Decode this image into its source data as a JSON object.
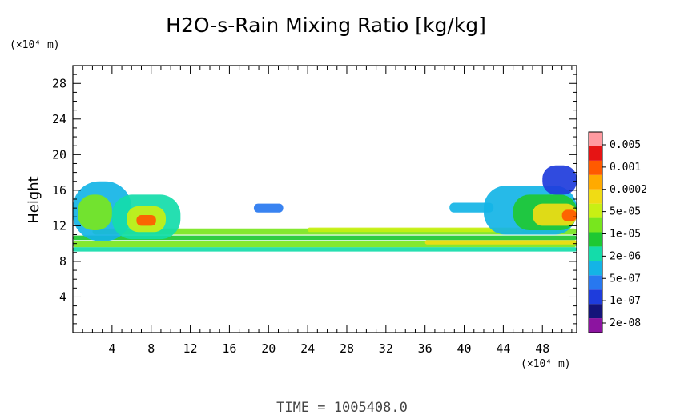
{
  "chart_data": {
    "type": "heatmap",
    "title": "H2O-s-Rain Mixing Ratio [kg/kg]",
    "ylabel": "Height",
    "y_unit": "(×10⁴ m)",
    "x_unit": "(×10⁴ m)",
    "xlim": [
      0,
      51.5
    ],
    "ylim": [
      0,
      30
    ],
    "x_ticks": [
      4,
      8,
      12,
      16,
      20,
      24,
      28,
      32,
      36,
      40,
      44,
      48
    ],
    "y_ticks": [
      4,
      8,
      12,
      16,
      20,
      24,
      28
    ],
    "grid": false,
    "legend_position": "right",
    "colorbar": {
      "labels": [
        "0.005",
        "0.001",
        "0.0002",
        "5e-05",
        "1e-05",
        "2e-06",
        "5e-07",
        "1e-07",
        "2e-08"
      ],
      "colors": [
        "#8c14a0",
        "#14147a",
        "#1e3cdc",
        "#2878f0",
        "#14b4e6",
        "#14dcaa",
        "#1ec832",
        "#78e61e",
        "#c8f014",
        "#f0dc14",
        "#ffaa00",
        "#ff5a00",
        "#e61414",
        "#ff9aa0"
      ]
    },
    "regions": [
      {
        "x": [
          0,
          51.5
        ],
        "y": [
          9.1,
          9.6
        ],
        "level": 5
      },
      {
        "x": [
          0,
          51.5
        ],
        "y": [
          9.6,
          10.3
        ],
        "level": 7
      },
      {
        "x": [
          36,
          51.5
        ],
        "y": [
          9.9,
          10.4
        ],
        "level": 9
      },
      {
        "x": [
          0,
          51.5
        ],
        "y": [
          10.4,
          10.9
        ],
        "level": 6
      },
      {
        "x": [
          2,
          51.5
        ],
        "y": [
          11.0,
          11.7
        ],
        "level": 7
      },
      {
        "x": [
          24,
          46
        ],
        "y": [
          11.3,
          11.8
        ],
        "level": 8
      },
      {
        "x": [
          0,
          6
        ],
        "y": [
          10.3,
          17.0
        ],
        "level": 4
      },
      {
        "x": [
          0.5,
          4
        ],
        "y": [
          11.5,
          15.5
        ],
        "level": 7
      },
      {
        "x": [
          4,
          11
        ],
        "y": [
          10.5,
          15.5
        ],
        "level": 5
      },
      {
        "x": [
          5.5,
          9.5
        ],
        "y": [
          11.3,
          14.2
        ],
        "level": 8
      },
      {
        "x": [
          6.5,
          8.5
        ],
        "y": [
          12.0,
          13.2
        ],
        "level": 11
      },
      {
        "x": [
          18.5,
          21.5
        ],
        "y": [
          13.5,
          14.5
        ],
        "level": 3
      },
      {
        "x": [
          38.5,
          43
        ],
        "y": [
          13.5,
          14.6
        ],
        "level": 4
      },
      {
        "x": [
          42,
          51.5
        ],
        "y": [
          11.0,
          16.5
        ],
        "level": 4
      },
      {
        "x": [
          45,
          51.5
        ],
        "y": [
          11.5,
          15.5
        ],
        "level": 6
      },
      {
        "x": [
          47,
          51.5
        ],
        "y": [
          12.0,
          14.5
        ],
        "level": 9
      },
      {
        "x": [
          50,
          51.5
        ],
        "y": [
          12.5,
          13.8
        ],
        "level": 11
      },
      {
        "x": [
          48,
          51.5
        ],
        "y": [
          15.5,
          18.8
        ],
        "level": 2
      }
    ],
    "footer": "TIME  =  1005408.0"
  }
}
